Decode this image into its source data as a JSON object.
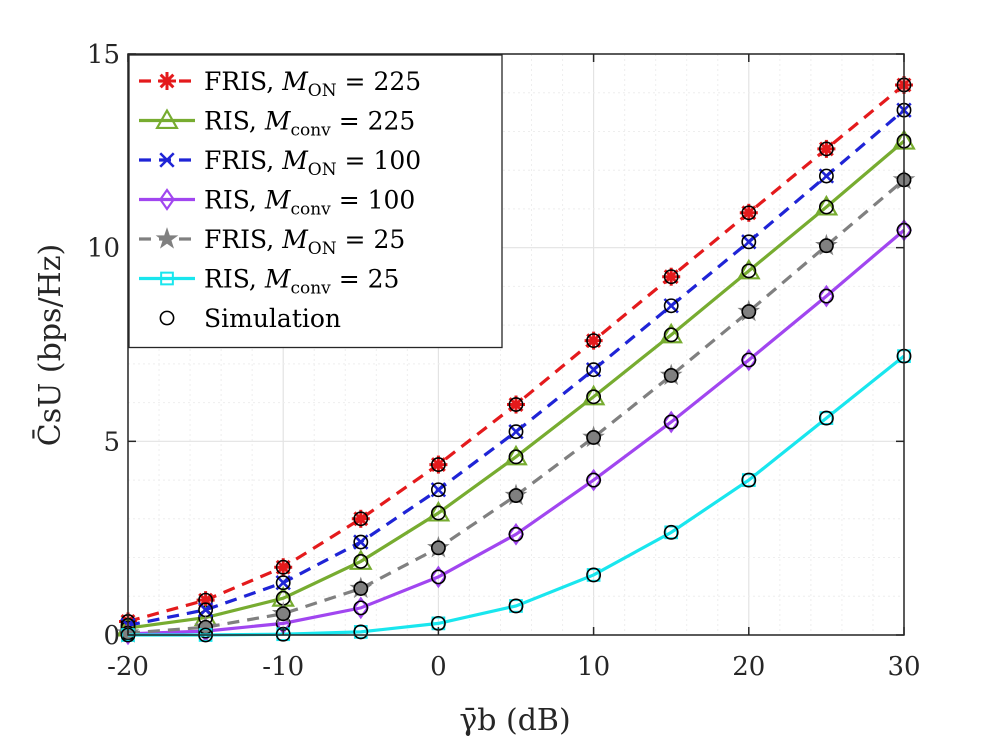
{
  "chart_data": {
    "type": "line",
    "xlabel": "γ̄b (dB)",
    "ylabel": "C̄sU (bps/Hz)",
    "xlim": [
      -20,
      30
    ],
    "ylim": [
      0,
      15
    ],
    "x": [
      -20,
      -15,
      -10,
      -5,
      0,
      5,
      10,
      15,
      20,
      25,
      30
    ],
    "x_tick_labels": [
      "-20",
      "-10",
      "0",
      "10",
      "20",
      "30"
    ],
    "y_tick_labels": [
      "0",
      "5",
      "10",
      "15"
    ],
    "grid": true,
    "legend_position": "top-left",
    "series": [
      {
        "name": "FRIS, M_ON = 225",
        "legend_prefix": "FRIS, ",
        "legend_var": "M",
        "legend_sub": "ON",
        "legend_suffix": " = 225",
        "color": "#e41a1c",
        "dash": "dashed",
        "marker": "asterisk",
        "values": [
          0.35,
          0.9,
          1.75,
          3.0,
          4.4,
          5.95,
          7.6,
          9.25,
          10.9,
          12.55,
          14.2
        ]
      },
      {
        "name": "RIS, M_conv = 225",
        "legend_prefix": "RIS, ",
        "legend_var": "M",
        "legend_sub": "conv",
        "legend_suffix": " = 225",
        "color": "#77ac30",
        "dash": "solid",
        "marker": "triangle",
        "values": [
          0.18,
          0.45,
          0.95,
          1.9,
          3.15,
          4.6,
          6.15,
          7.75,
          9.4,
          11.05,
          12.75
        ]
      },
      {
        "name": "FRIS, M_ON = 100",
        "legend_prefix": "FRIS, ",
        "legend_var": "M",
        "legend_sub": "ON",
        "legend_suffix": " = 100",
        "color": "#1f24d6",
        "dash": "dashed",
        "marker": "x",
        "values": [
          0.25,
          0.65,
          1.35,
          2.4,
          3.75,
          5.25,
          6.85,
          8.5,
          10.15,
          11.85,
          13.55
        ]
      },
      {
        "name": "RIS, M_conv = 100",
        "legend_prefix": "RIS, ",
        "legend_var": "M",
        "legend_sub": "conv",
        "legend_suffix": " = 100",
        "color": "#a146f0",
        "dash": "solid",
        "marker": "diamond",
        "values": [
          0.03,
          0.1,
          0.3,
          0.7,
          1.5,
          2.6,
          4.0,
          5.5,
          7.1,
          8.75,
          10.45
        ]
      },
      {
        "name": "FRIS, M_ON = 25",
        "legend_prefix": "FRIS, ",
        "legend_var": "M",
        "legend_sub": "ON",
        "legend_suffix": " = 25",
        "color": "#808080",
        "dash": "dashed",
        "marker": "star",
        "values": [
          0.05,
          0.2,
          0.55,
          1.2,
          2.25,
          3.6,
          5.1,
          6.7,
          8.35,
          10.05,
          11.75
        ]
      },
      {
        "name": "RIS, M_conv = 25",
        "legend_prefix": "RIS, ",
        "legend_var": "M",
        "legend_sub": "conv",
        "legend_suffix": " = 25",
        "color": "#19e6ee",
        "dash": "solid",
        "marker": "square",
        "values": [
          0.0,
          0.0,
          0.02,
          0.08,
          0.3,
          0.75,
          1.55,
          2.65,
          4.0,
          5.6,
          7.2
        ]
      }
    ],
    "simulation_legend": "Simulation",
    "simulation_marker": "circle"
  }
}
